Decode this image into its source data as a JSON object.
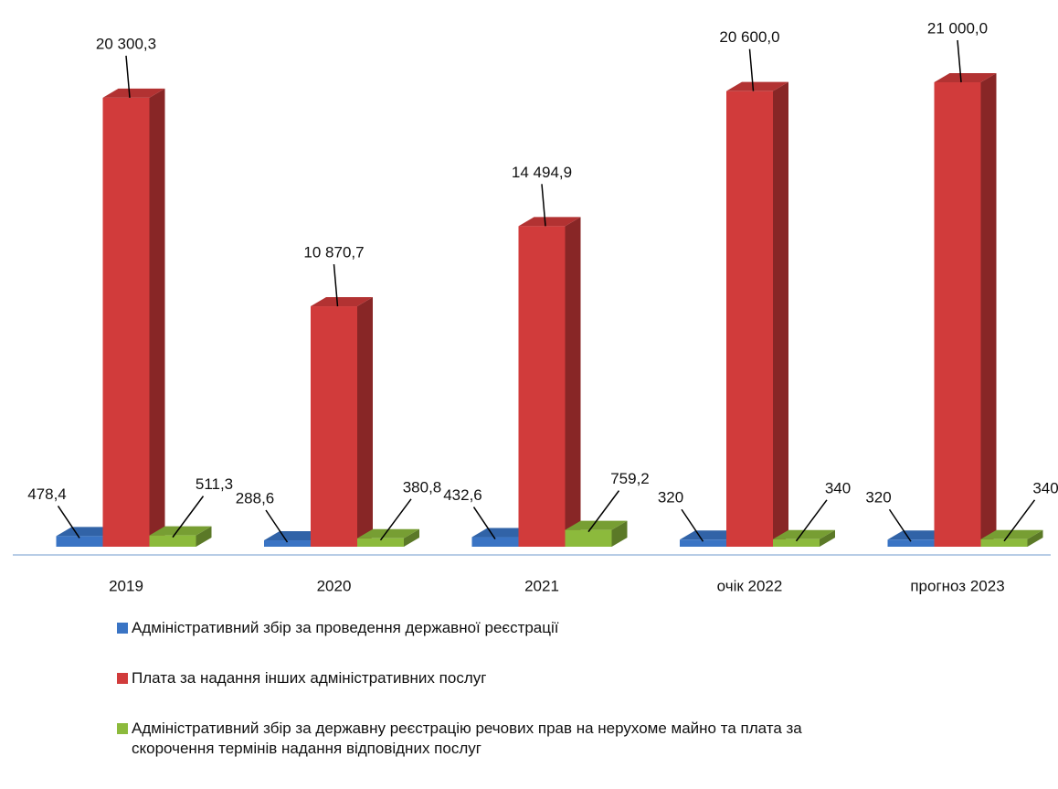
{
  "chart_data": {
    "type": "bar3d",
    "categories": [
      "2019",
      "2020",
      "2021",
      "очік 2022",
      "прогноз 2023"
    ],
    "series": [
      {
        "name": "Адміністративний збір за проведення державної реєстрації",
        "color": "#3a74c4",
        "values": [
          478.4,
          288.6,
          432.6,
          320,
          320
        ],
        "value_labels": [
          "478,4",
          "288,6",
          "432,6",
          "320",
          "320"
        ]
      },
      {
        "name": "Плата за надання інших адміністративних послуг",
        "color": "#d13b3b",
        "values": [
          20300.3,
          10870.7,
          14494.9,
          20600.0,
          21000.0
        ],
        "value_labels": [
          "20 300,3",
          "10 870,7",
          "14 494,9",
          "20 600,0",
          "21 000,0"
        ]
      },
      {
        "name": "Адміністративний збір за державну реєстрацію речових прав на нерухоме майно та плата за скорочення термінів надання відповідних послуг",
        "color": "#8cba3c",
        "values": [
          511.3,
          380.8,
          759.2,
          340,
          340
        ],
        "value_labels": [
          "511,3",
          "380,8",
          "759,2",
          "340",
          "340"
        ]
      }
    ]
  }
}
